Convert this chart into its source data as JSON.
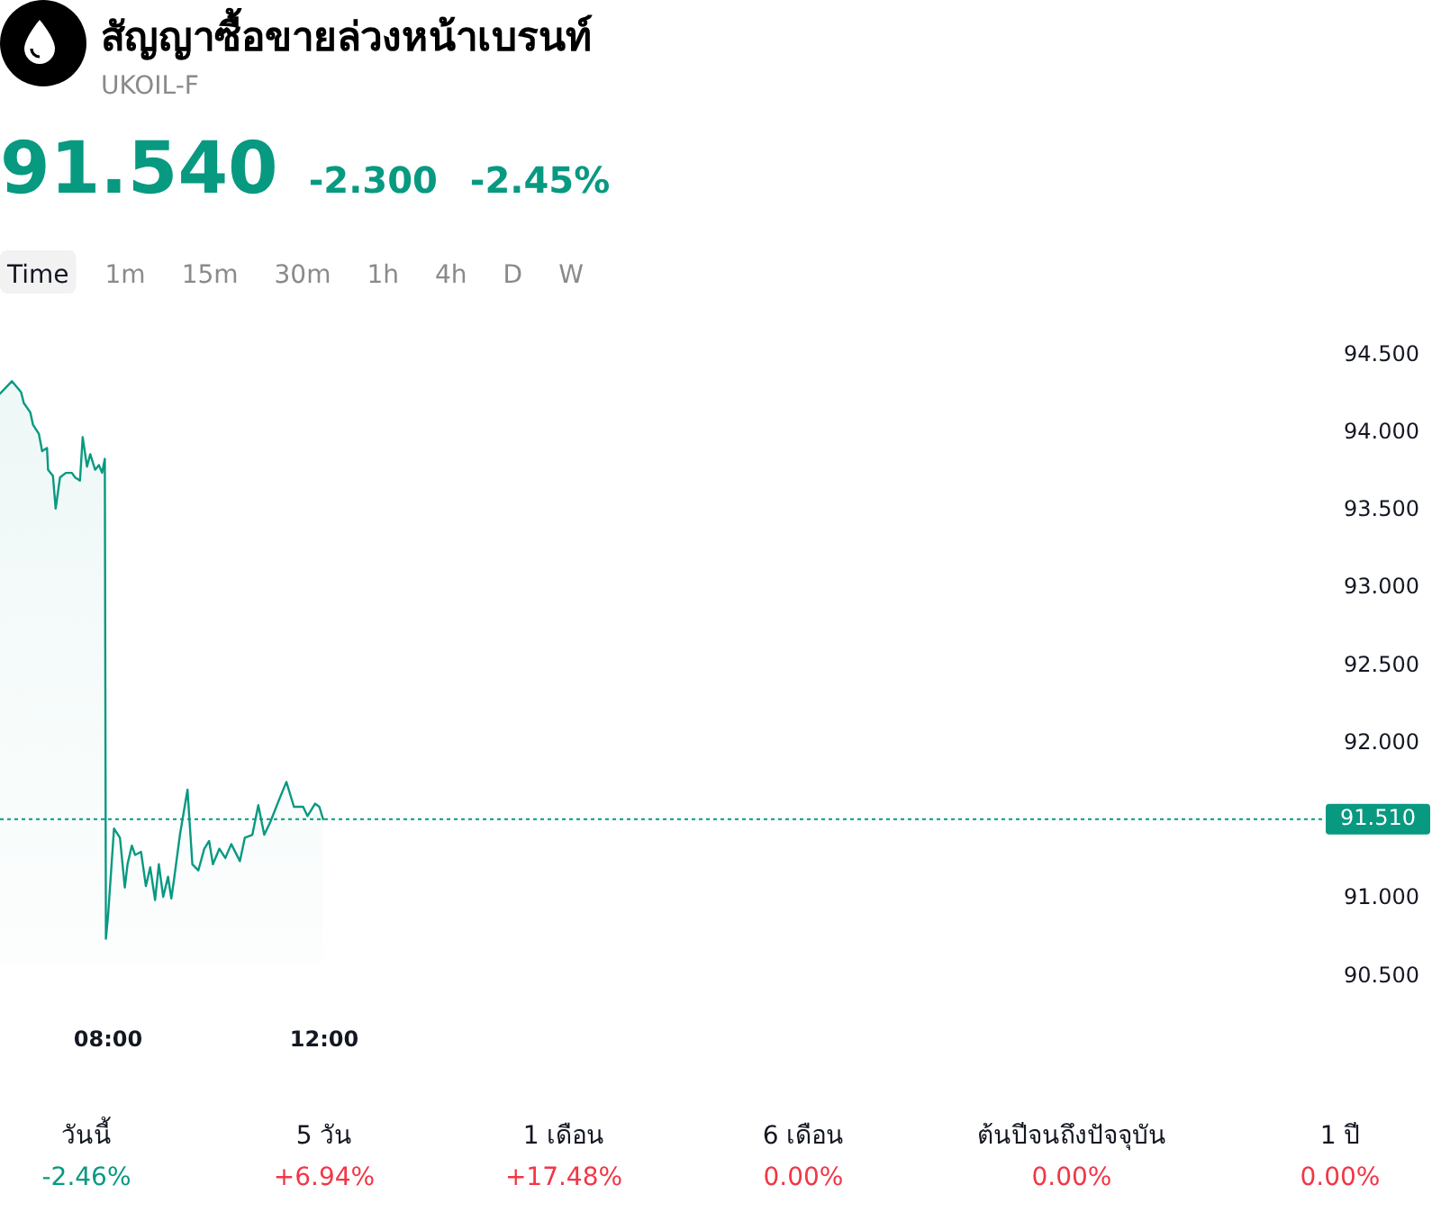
{
  "chart_data": [
    {
      "type": "area",
      "title": "สัญญาซื้อขายล่วงหน้าเบรนท์",
      "subtitle": "UKOIL-F",
      "annotations": [
        "91.540",
        "-2.300",
        "-2.45%",
        "Time",
        "1m",
        "15m",
        "30m",
        "1h",
        "4h",
        "D",
        "W"
      ],
      "x": [
        6.0,
        6.22,
        6.39,
        6.44,
        6.56,
        6.61,
        6.72,
        6.78,
        6.87,
        6.89,
        6.98,
        7.03,
        7.11,
        7.22,
        7.33,
        7.39,
        7.48,
        7.53,
        7.61,
        7.67,
        7.76,
        7.83,
        7.89,
        7.94,
        7.96,
        8.0,
        8.11,
        8.22,
        8.31,
        8.36,
        8.44,
        8.5,
        8.61,
        8.7,
        8.78,
        8.87,
        8.94,
        9.02,
        9.11,
        9.17,
        9.22,
        9.33,
        9.47,
        9.56,
        9.67,
        9.78,
        9.87,
        9.94,
        10.06,
        10.17,
        10.28,
        10.44,
        10.53,
        10.67,
        10.78,
        10.89,
        11.0,
        11.17,
        11.3,
        11.44,
        11.61,
        11.69,
        11.83,
        11.91,
        11.98
      ],
      "series": [
        {
          "color": "#089981",
          "values": [
            94.25,
            94.33,
            94.26,
            94.19,
            94.13,
            94.05,
            93.99,
            93.88,
            93.9,
            93.76,
            93.72,
            93.51,
            93.71,
            93.74,
            93.74,
            93.71,
            93.69,
            93.97,
            93.78,
            93.86,
            93.76,
            93.79,
            93.74,
            93.83,
            90.74,
            90.89,
            91.45,
            91.39,
            91.07,
            91.22,
            91.34,
            91.28,
            91.3,
            91.08,
            91.2,
            90.99,
            91.22,
            91.01,
            91.14,
            91.0,
            91.12,
            91.41,
            91.7,
            91.22,
            91.18,
            91.32,
            91.37,
            91.22,
            91.32,
            91.26,
            91.35,
            91.24,
            91.39,
            91.41,
            91.6,
            91.41,
            91.49,
            91.64,
            91.75,
            91.59,
            91.59,
            91.53,
            91.61,
            91.59,
            91.51
          ]
        }
      ],
      "xlim": [
        6,
        30.5
      ],
      "xticks": [
        {
          "value": 8,
          "label": "08:00"
        },
        {
          "value": 12,
          "label": "12:00"
        }
      ],
      "ylim": [
        90.5,
        94.5
      ],
      "yticks": [
        {
          "value": 90.5,
          "label": "90.500"
        },
        {
          "value": 91,
          "label": "91.000"
        },
        {
          "value": 92,
          "label": "92.000"
        },
        {
          "value": 92.5,
          "label": "92.500"
        },
        {
          "value": 93,
          "label": "93.000"
        },
        {
          "value": 93.5,
          "label": "93.500"
        },
        {
          "value": 94,
          "label": "94.000"
        },
        {
          "value": 94.5,
          "label": "94.500"
        }
      ],
      "ref_lines": [
        {
          "axis": "y",
          "value": 91.51,
          "label": "91.510",
          "color": "#089981",
          "line_style": "dotted"
        }
      ]
    },
    {
      "type": "other",
      "categories": [
        "วันนี้",
        "5 วัน",
        "1 เดือน",
        "6 เดือน",
        "ต้นปีจนถึงปัจจุบัน",
        "1 ปี"
      ],
      "value_labels": [
        "-2.46%",
        "+6.94%",
        "+17.48%",
        "0.00%",
        "0.00%",
        "0.00%"
      ],
      "colors": [
        "#089981",
        "#f23645",
        "#f23645",
        "#f23645",
        "#f23645",
        "#f23645"
      ]
    }
  ]
}
